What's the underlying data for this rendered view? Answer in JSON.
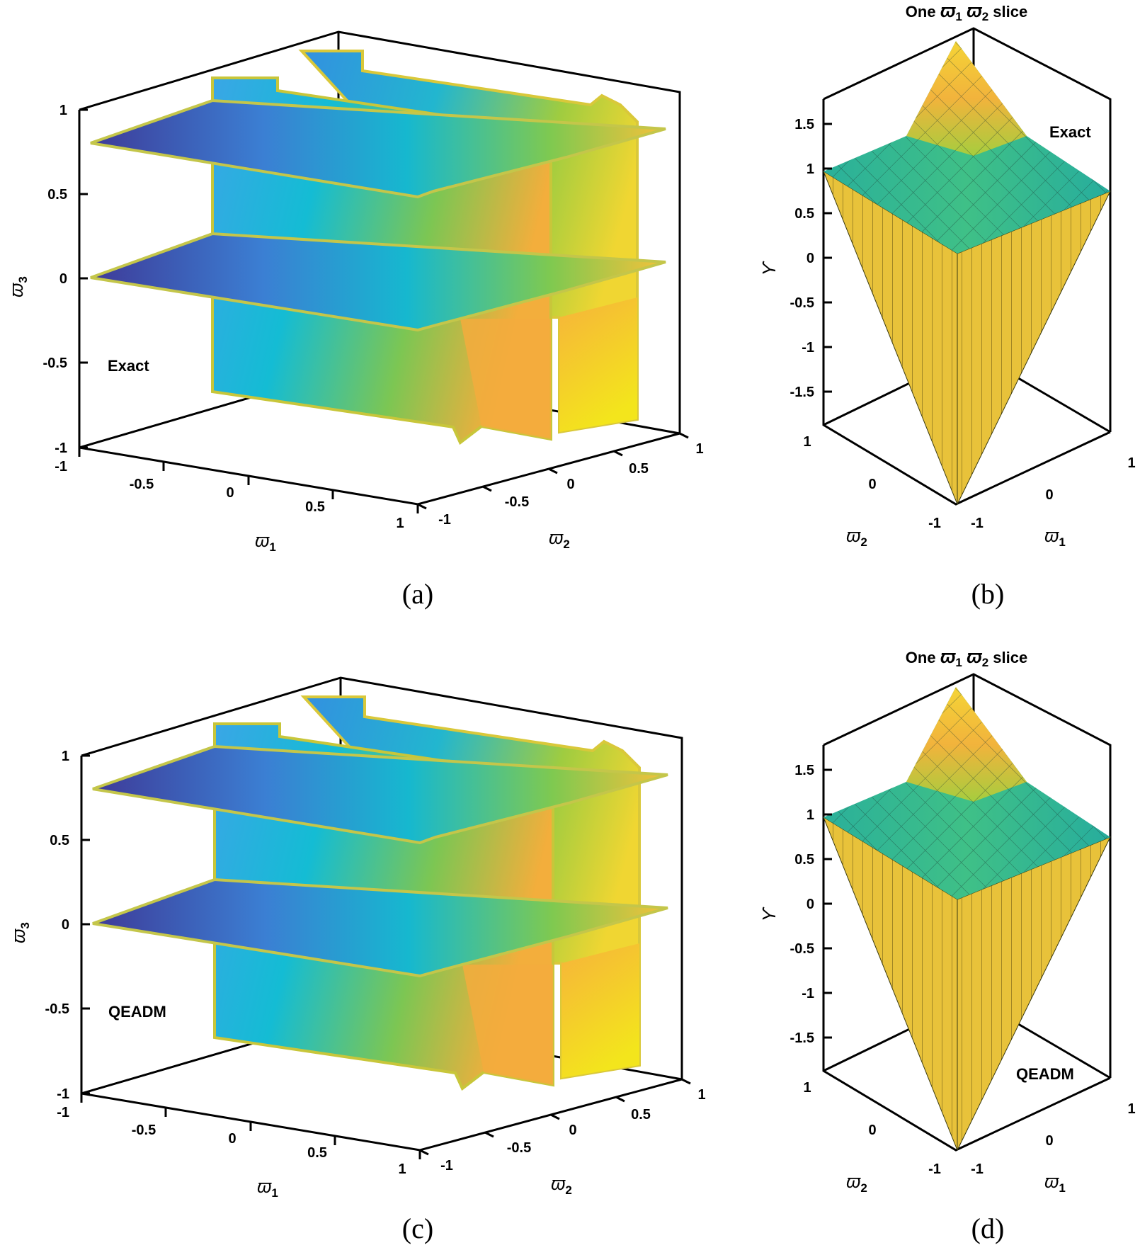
{
  "chart_data": [
    {
      "panel": "a",
      "type": "volume-slice",
      "caption": "(a)",
      "annotation": "Exact",
      "xlabel": "ϖ",
      "xlabel_sub": "1",
      "ylabel": "ϖ",
      "ylabel_sub": "2",
      "zlabel": "ϖ",
      "zlabel_sub": "3",
      "x_ticks": [
        "-1",
        "-0.5",
        "0",
        "0.5",
        "1"
      ],
      "y_ticks": [
        "-1",
        "-0.5",
        "0",
        "0.5",
        "1"
      ],
      "z_ticks": [
        "-1",
        "-0.5",
        "0",
        "0.5",
        "1"
      ],
      "xlim": [
        -1,
        1
      ],
      "ylim": [
        -1,
        1
      ],
      "zlim": [
        -1,
        1
      ],
      "horizontal_slices_z": [
        0.8,
        0
      ],
      "vertical_slices_x": [
        0,
        0.8
      ]
    },
    {
      "panel": "b",
      "type": "surface",
      "caption": "(b)",
      "title_pre": "One",
      "title_post": "slice",
      "title_sym": "ϖ",
      "title_sub1": "1",
      "title_sub2": "2",
      "annotation": "Exact",
      "xlabel": "ϖ",
      "xlabel_sub": "1",
      "ylabel": "ϖ",
      "ylabel_sub": "2",
      "zlabel": "ϒ",
      "x_ticks": [
        "-1",
        "0",
        "1"
      ],
      "y_ticks": [
        "-1",
        "0",
        "1"
      ],
      "z_ticks": [
        "-1.5",
        "-1",
        "-0.5",
        "0",
        "0.5",
        "1",
        "1.5"
      ],
      "xlim": [
        -1,
        1
      ],
      "ylim": [
        -1,
        1
      ],
      "zlim": [
        -1.8,
        1.8
      ],
      "peak_max": 1.8,
      "peak_min": -1.8,
      "corner_value": 0.95
    },
    {
      "panel": "c",
      "type": "volume-slice",
      "caption": "(c)",
      "annotation": "QEADM",
      "xlabel": "ϖ",
      "xlabel_sub": "1",
      "ylabel": "ϖ",
      "ylabel_sub": "2",
      "zlabel": "ϖ",
      "zlabel_sub": "3",
      "x_ticks": [
        "-1",
        "-0.5",
        "0",
        "0.5",
        "1"
      ],
      "y_ticks": [
        "-1",
        "-0.5",
        "0",
        "0.5",
        "1"
      ],
      "z_ticks": [
        "-1",
        "-0.5",
        "0",
        "0.5",
        "1"
      ],
      "xlim": [
        -1,
        1
      ],
      "ylim": [
        -1,
        1
      ],
      "zlim": [
        -1,
        1
      ],
      "horizontal_slices_z": [
        0.8,
        0
      ],
      "vertical_slices_x": [
        0,
        0.8
      ]
    },
    {
      "panel": "d",
      "type": "surface",
      "caption": "(d)",
      "title_pre": "One",
      "title_post": "slice",
      "title_sym": "ϖ",
      "title_sub1": "1",
      "title_sub2": "2",
      "annotation": "QEADM",
      "xlabel": "ϖ",
      "xlabel_sub": "1",
      "ylabel": "ϖ",
      "ylabel_sub": "2",
      "zlabel": "ϒ",
      "x_ticks": [
        "-1",
        "0",
        "1"
      ],
      "y_ticks": [
        "-1",
        "0",
        "1"
      ],
      "z_ticks": [
        "-1.5",
        "-1",
        "-0.5",
        "0",
        "0.5",
        "1",
        "1.5"
      ],
      "xlim": [
        -1,
        1
      ],
      "ylim": [
        -1,
        1
      ],
      "zlim": [
        -1.8,
        1.8
      ],
      "peak_max": 1.8,
      "peak_min": -1.8,
      "corner_value": 0.95
    }
  ]
}
